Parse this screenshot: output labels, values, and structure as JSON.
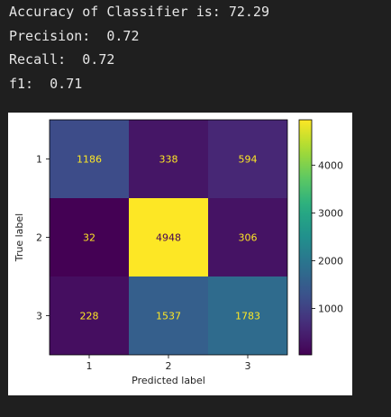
{
  "output": {
    "lines": [
      "Accuracy of Classifier is: 72.29",
      "Precision:  0.72",
      "Recall:  0.72",
      "f1:  0.71"
    ]
  },
  "chart_data": {
    "type": "heatmap",
    "title": "",
    "xlabel": "Predicted label",
    "ylabel": "True label",
    "x_categories": [
      "1",
      "2",
      "3"
    ],
    "y_categories": [
      "1",
      "2",
      "3"
    ],
    "matrix": [
      [
        1186,
        338,
        594
      ],
      [
        32,
        4948,
        306
      ],
      [
        228,
        1537,
        1783
      ]
    ],
    "colormap": "viridis",
    "colorbar": {
      "ticks": [
        1000,
        2000,
        3000,
        4000
      ],
      "range": [
        32,
        4948
      ]
    },
    "text_colors": {
      "dark_cell": "#fde725",
      "light_cell": "#440154"
    }
  }
}
